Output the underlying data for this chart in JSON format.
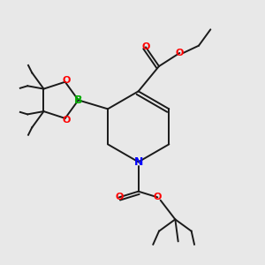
{
  "background_color": "#e8e8e8",
  "bond_color": "#1a1a1a",
  "atom_colors": {
    "N": "#0000ff",
    "O": "#ff0000",
    "B": "#00aa00",
    "C": "#1a1a1a"
  },
  "figsize": [
    3.0,
    3.0
  ],
  "dpi": 100
}
